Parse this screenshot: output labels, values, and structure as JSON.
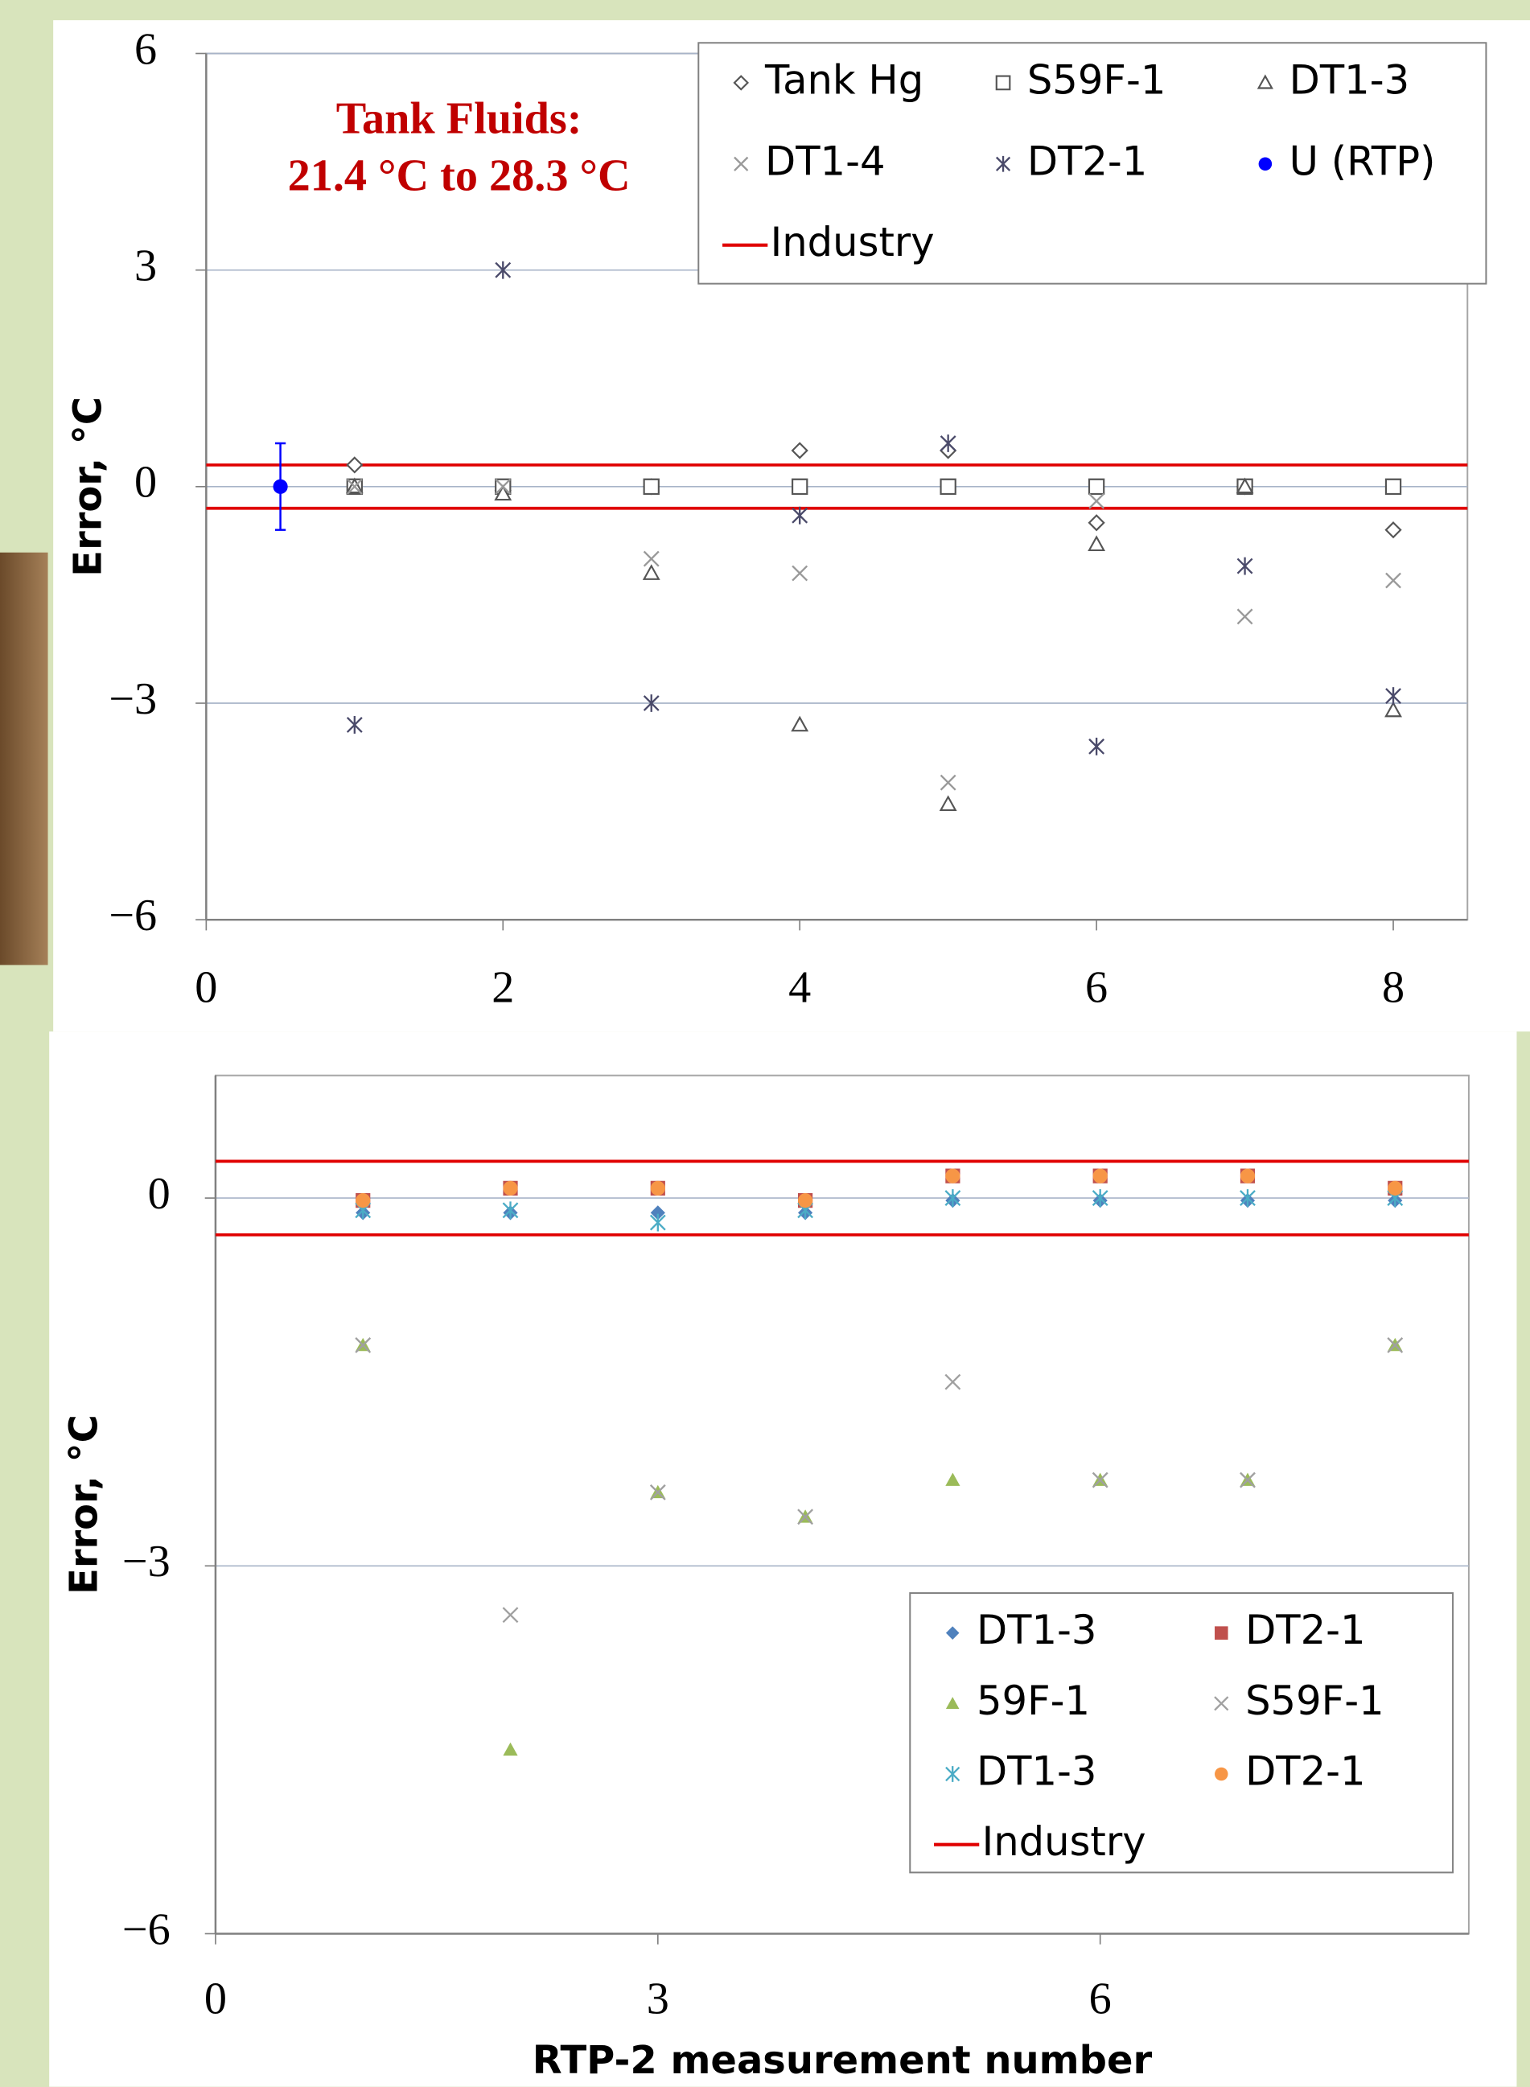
{
  "chart_data": [
    {
      "type": "scatter",
      "y_label": "Error, °C",
      "annotation": [
        "Tank Fluids:",
        "21.4 °C to  28.3 °C"
      ],
      "annotation_color": "#c00000",
      "xlim": [
        0,
        8.5
      ],
      "ylim": [
        -6,
        6
      ],
      "xticks": [
        0,
        2,
        4,
        6,
        8
      ],
      "yticks": [
        6,
        3,
        0,
        {
          "value": -3,
          "label": "−3"
        },
        {
          "value": -6,
          "label": "−6"
        }
      ],
      "grid": true,
      "series": [
        {
          "name": "Tank Hg",
          "color": "#555555",
          "marker": "diamond",
          "style": "hollow",
          "x": [
            1,
            2,
            3,
            4,
            5,
            6,
            7,
            8
          ],
          "values": [
            0.3,
            -0.05,
            0,
            0.5,
            0.5,
            -0.5,
            0,
            -0.6
          ]
        },
        {
          "name": "S59F-1",
          "color": "#555555",
          "marker": "square",
          "style": "hollow",
          "x": [
            1,
            2,
            3,
            4,
            5,
            6,
            7,
            8
          ],
          "values": [
            0,
            0,
            0,
            0,
            0,
            0,
            0,
            0
          ]
        },
        {
          "name": "DT1-3",
          "color": "#555555",
          "marker": "triangle",
          "style": "hollow",
          "x": [
            1,
            2,
            3,
            4,
            5,
            6,
            7,
            8
          ],
          "values": [
            0,
            -0.1,
            -1.2,
            -3.3,
            -4.4,
            -0.8,
            0,
            -3.1
          ]
        },
        {
          "name": "DT1-4",
          "color": "#999999",
          "marker": "x",
          "style": "hollow",
          "x": [
            1,
            2,
            3,
            4,
            5,
            6,
            7,
            8
          ],
          "values": [
            0,
            0,
            -1.0,
            -1.2,
            -4.1,
            -0.2,
            -1.8,
            -1.3
          ]
        },
        {
          "name": "DT2-1",
          "color": "#4a4a6a",
          "marker": "asterisk",
          "style": "hollow",
          "x": [
            1,
            2,
            3,
            4,
            5,
            6,
            7,
            8
          ],
          "values": [
            -3.3,
            3.0,
            -3.0,
            -0.4,
            0.6,
            -3.6,
            -1.1,
            -2.9
          ]
        },
        {
          "name": "U (RTP)",
          "color": "#0000ff",
          "marker": "circle",
          "style": "filled",
          "x": [
            0.5
          ],
          "values": [
            0
          ],
          "errors": [
            0.6
          ]
        }
      ],
      "lines": [
        {
          "name": "Industry",
          "color": "#e00000",
          "values": [
            0.3,
            -0.3
          ]
        }
      ]
    },
    {
      "type": "scatter",
      "y_label": "Error, °C",
      "x_label": "RTP-2 measurement number",
      "xlim": [
        0,
        8.5
      ],
      "ylim": [
        -6,
        1
      ],
      "xticks": [
        0,
        3,
        6
      ],
      "yticks": [
        0,
        {
          "value": -3,
          "label": "−3"
        },
        {
          "value": -6,
          "label": "−6"
        }
      ],
      "grid": true,
      "series": [
        {
          "name": "DT1-3",
          "color": "#4f81bd",
          "marker": "diamond",
          "style": "filled",
          "x": [
            1,
            2,
            3,
            4,
            5,
            6,
            7,
            8
          ],
          "values": [
            -0.12,
            -0.12,
            -0.12,
            -0.12,
            -0.02,
            -0.02,
            -0.02,
            -0.02
          ]
        },
        {
          "name": "DT2-1",
          "color": "#c0504d",
          "marker": "square",
          "style": "filled",
          "x": [
            1,
            2,
            3,
            4,
            5,
            6,
            7,
            8
          ],
          "values": [
            -0.02,
            0.08,
            0.08,
            -0.02,
            0.18,
            0.18,
            0.18,
            0.08
          ]
        },
        {
          "name": "59F-1",
          "color": "#9bbb59",
          "marker": "triangle",
          "style": "filled",
          "x": [
            1,
            2,
            3,
            4,
            5,
            6,
            7,
            8
          ],
          "values": [
            -1.2,
            -4.5,
            -2.4,
            -2.6,
            -2.3,
            -2.3,
            -2.3,
            -1.2
          ]
        },
        {
          "name": "S59F-1",
          "color": "#a0a0a0",
          "marker": "x",
          "style": "filled",
          "x": [
            1,
            2,
            3,
            4,
            5,
            6,
            7,
            8
          ],
          "values": [
            -1.2,
            -3.4,
            -2.4,
            -2.6,
            -1.5,
            -2.3,
            -2.3,
            -1.2
          ]
        },
        {
          "name": "DT1-3",
          "color": "#4bacc6",
          "marker": "asterisk",
          "style": "filled",
          "x": [
            1,
            2,
            3,
            4,
            5,
            6,
            7,
            8
          ],
          "values": [
            -0.1,
            -0.1,
            -0.2,
            -0.1,
            0,
            0,
            0,
            0
          ]
        },
        {
          "name": "DT2-1",
          "color": "#f79646",
          "marker": "circle",
          "style": "filled",
          "x": [
            1,
            2,
            3,
            4,
            5,
            6,
            7,
            8
          ],
          "values": [
            -0.02,
            0.08,
            0.08,
            -0.02,
            0.18,
            0.18,
            0.18,
            0.08
          ]
        }
      ],
      "lines": [
        {
          "name": "Industry",
          "color": "#e00000",
          "values": [
            0.3,
            -0.3
          ]
        }
      ]
    }
  ]
}
